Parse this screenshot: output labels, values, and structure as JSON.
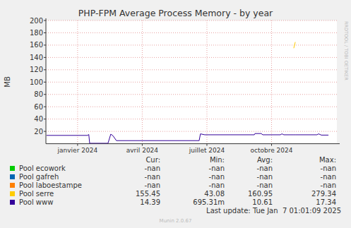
{
  "chart_data": {
    "type": "line",
    "title": "PHP-FPM Average Process Memory - by year",
    "y_label": "MB",
    "x": [
      -1.44,
      0.46,
      0.52,
      0.56,
      1.41,
      1.54,
      1.64,
      1.8,
      5.64,
      5.7,
      5.9,
      8.2,
      8.23,
      8.52,
      8.59,
      9.41,
      9.48,
      9.57,
      10.03,
      10.1,
      11.11,
      11.18,
      11.31,
      11.64
    ],
    "xlim": [
      -1.47,
      12.03
    ],
    "xticks": [
      {
        "value": 0,
        "label": "janvier 2024"
      },
      {
        "value": 3,
        "label": "avril 2024"
      },
      {
        "value": 6,
        "label": "juillet 2024"
      },
      {
        "value": 9,
        "label": "octobre 2024"
      }
    ],
    "ylim": [
      0,
      200
    ],
    "yticks": [
      20,
      40,
      60,
      80,
      100,
      120,
      140,
      160,
      180,
      200
    ],
    "grid": true,
    "legend": "bottom",
    "stats_headers": [
      "Cur:",
      "Min:",
      "Avg:",
      "Max:"
    ],
    "series": [
      {
        "name": "Pool ecowork",
        "color": "#00cc00",
        "values": [
          null,
          null,
          null,
          null,
          null,
          null,
          null,
          null,
          null,
          null,
          null,
          null,
          null,
          null,
          null,
          null,
          null,
          null,
          null,
          null,
          null,
          null,
          null,
          null
        ],
        "stats_labels": [
          "-nan",
          "-nan",
          "-nan",
          "-nan"
        ]
      },
      {
        "name": "Pool gafreh",
        "color": "#0066b3",
        "values": [
          null,
          null,
          null,
          null,
          null,
          null,
          null,
          null,
          null,
          null,
          null,
          null,
          null,
          null,
          null,
          null,
          null,
          null,
          null,
          null,
          null,
          null,
          null,
          null
        ],
        "stats_labels": [
          "-nan",
          "-nan",
          "-nan",
          "-nan"
        ]
      },
      {
        "name": "Pool laboestampe",
        "color": "#ff8000",
        "values": [
          null,
          null,
          null,
          null,
          null,
          null,
          null,
          null,
          null,
          null,
          null,
          null,
          null,
          null,
          null,
          null,
          null,
          null,
          null,
          null,
          null,
          null,
          null,
          null
        ],
        "stats_labels": [
          "-nan",
          "-nan",
          "-nan",
          "-nan"
        ]
      },
      {
        "name": "Pool serre",
        "color": "#ffcc00",
        "values": [
          null,
          null,
          null,
          null,
          null,
          null,
          null,
          null,
          null,
          null,
          null,
          null,
          null,
          null,
          null,
          null,
          null,
          null,
          155,
          165,
          null,
          null,
          null,
          null
        ],
        "stats_labels": [
          "155.45",
          "43.08",
          "160.95",
          "279.34"
        ]
      },
      {
        "name": "Pool www",
        "color": "#330099",
        "values": [
          13.5,
          13.5,
          15,
          0.7,
          0.7,
          15.5,
          13,
          5,
          5,
          16,
          14.5,
          14.5,
          16.5,
          16.5,
          14.5,
          14.5,
          16,
          14.5,
          14.5,
          14.5,
          14.5,
          16,
          14,
          14
        ],
        "stats_labels": [
          "14.39",
          "695.31m",
          "10.61",
          "17.34"
        ]
      }
    ],
    "last_update": "Last update: Tue Jan  7 01:01:09 2025",
    "footer": "Munin 2.0.67",
    "watermark": "RRDTOOL / TOBI OETIKER"
  }
}
